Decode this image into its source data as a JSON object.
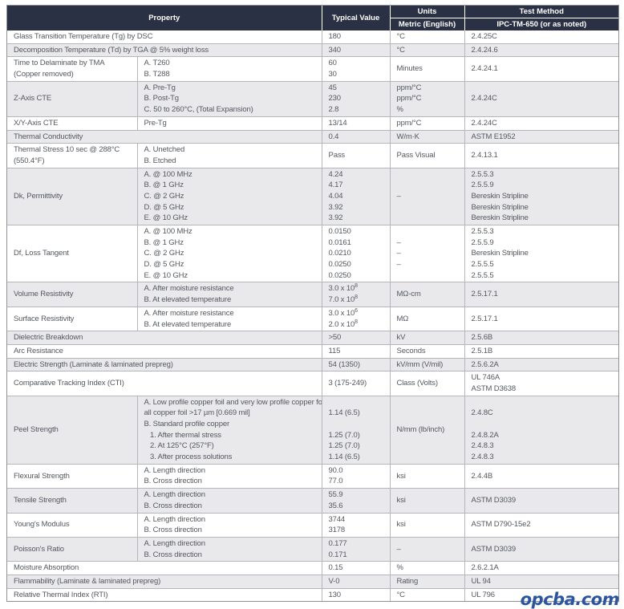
{
  "header": {
    "property": "Property",
    "typical_value": "Typical Value",
    "units": "Units",
    "units_sub": "Metric (English)",
    "test_method": "Test Method",
    "test_method_sub": "IPC-TM-650 (or as noted)"
  },
  "colors": {
    "header_bg": "#2b3144",
    "header_text": "#ffffff",
    "alt_row_bg": "#e9e9ec",
    "border": "#b4b6bb",
    "text": "#54585f",
    "watermark_blue": "#2a55a4"
  },
  "watermark": {
    "text": "opcba.com"
  },
  "rows": [
    {
      "span": true,
      "property": [
        "Glass Transition Temperature (Tg) by DSC"
      ],
      "values": [
        "180"
      ],
      "units": [
        "°C"
      ],
      "test": [
        "2.4.25C"
      ]
    },
    {
      "span": true,
      "property": [
        "Decomposition Temperature (Td) by TGA @ 5% weight loss"
      ],
      "values": [
        "340"
      ],
      "units": [
        "°C"
      ],
      "test": [
        "2.4.24.6"
      ]
    },
    {
      "span": false,
      "property": [
        "Time to Delaminate by TMA",
        "(Copper removed)"
      ],
      "sub": [
        "A. T260",
        "B. T288"
      ],
      "values": [
        "60",
        "30"
      ],
      "units": [
        "Minutes"
      ],
      "test": [
        "2.4.24.1"
      ]
    },
    {
      "span": false,
      "property": [
        "Z-Axis CTE"
      ],
      "sub": [
        "A. Pre-Tg",
        "B. Post-Tg",
        "C. 50 to 260°C, (Total Expansion)"
      ],
      "values": [
        "45",
        "230",
        "2.8"
      ],
      "units": [
        "ppm/°C",
        "ppm/°C",
        "%"
      ],
      "test": [
        "2.4.24C"
      ]
    },
    {
      "span": false,
      "property": [
        "X/Y-Axis CTE"
      ],
      "sub": [
        "Pre-Tg"
      ],
      "values": [
        "13/14"
      ],
      "units": [
        "ppm/°C"
      ],
      "test": [
        "2.4.24C"
      ]
    },
    {
      "span": true,
      "property": [
        "Thermal Conductivity"
      ],
      "values": [
        "0.4"
      ],
      "units": [
        "W/m·K"
      ],
      "test": [
        "ASTM E1952"
      ]
    },
    {
      "span": false,
      "property": [
        "Thermal Stress 10 sec @ 288°C",
        "(550.4°F)"
      ],
      "sub": [
        "A. Unetched",
        "B. Etched"
      ],
      "values": [
        "Pass"
      ],
      "units": [
        "Pass Visual"
      ],
      "test": [
        "2.4.13.1"
      ]
    },
    {
      "span": false,
      "property": [
        "Dk, Permittivity"
      ],
      "sub": [
        "A. @ 100 MHz",
        "B. @ 1 GHz",
        "C. @ 2 GHz",
        "D. @ 5 GHz",
        "E. @ 10 GHz"
      ],
      "values": [
        "4.24",
        "4.17",
        "4.04",
        "3.92",
        "3.92"
      ],
      "units": [
        "",
        "",
        "–",
        "",
        ""
      ],
      "test": [
        "2.5.5.3",
        "2.5.5.9",
        "Bereskin Stripline",
        "Bereskin Stripline",
        "Bereskin Stripline"
      ]
    },
    {
      "span": false,
      "property": [
        "Df, Loss Tangent"
      ],
      "sub": [
        "A. @ 100 MHz",
        "B. @ 1 GHz",
        "C. @ 2 GHz",
        "D. @ 5 GHz",
        "E. @ 10 GHz"
      ],
      "values": [
        "0.0150",
        "0.0161",
        "0.0210",
        "0.0250",
        "0.0250"
      ],
      "units": [
        "",
        "–",
        "–",
        "–",
        ""
      ],
      "test": [
        "2.5.5.3",
        "2.5.5.9",
        "Bereskin Stripline",
        "2.5.5.5",
        "2.5.5.5"
      ]
    },
    {
      "span": false,
      "property": [
        "Volume Resistivity"
      ],
      "sub": [
        "A. After moisture resistance",
        "B. At elevated temperature"
      ],
      "values": [
        "3.0 x 10^8",
        "7.0 x 10^8"
      ],
      "units": [
        "MΩ-cm"
      ],
      "test": [
        "2.5.17.1"
      ]
    },
    {
      "span": false,
      "property": [
        "Surface Resistivity"
      ],
      "sub": [
        "A. After moisture resistance",
        "B. At elevated temperature"
      ],
      "values": [
        "3.0 x 10^6",
        "2.0 x 10^8"
      ],
      "units": [
        "MΩ"
      ],
      "test": [
        "2.5.17.1"
      ]
    },
    {
      "span": true,
      "property": [
        "Dielectric Breakdown"
      ],
      "values": [
        ">50"
      ],
      "units": [
        "kV"
      ],
      "test": [
        "2.5.6B"
      ]
    },
    {
      "span": true,
      "property": [
        "Arc Resistance"
      ],
      "values": [
        "115"
      ],
      "units": [
        "Seconds"
      ],
      "test": [
        "2.5.1B"
      ]
    },
    {
      "span": true,
      "property": [
        "Electric Strength (Laminate & laminated prepreg)"
      ],
      "values": [
        "54 (1350)"
      ],
      "units": [
        "kV/mm (V/mil)"
      ],
      "test": [
        "2.5.6.2A"
      ]
    },
    {
      "span": true,
      "property": [
        "Comparative Tracking Index (CTI)"
      ],
      "values": [
        "3 (175-249)"
      ],
      "units": [
        "Class (Volts)"
      ],
      "test": [
        "UL 746A",
        "ASTM D3638"
      ]
    },
    {
      "span": false,
      "property": [
        "Peel Strength"
      ],
      "sub": [
        "A. Low profile copper foil and very low profile copper foil",
        "all copper foil >17 µm [0.669 mil]",
        "B. Standard profile copper",
        "   1. After thermal stress",
        "   2. At 125°C (257°F)",
        "   3. After process solutions"
      ],
      "values": [
        "",
        "1.14 (6.5)",
        "",
        "1.25 (7.0)",
        "1.25 (7.0)",
        "1.14 (6.5)"
      ],
      "units": [
        "N/mm (lb/inch)"
      ],
      "test": [
        "",
        "2.4.8C",
        "",
        "2.4.8.2A",
        "2.4.8.3",
        "2.4.8.3"
      ]
    },
    {
      "span": false,
      "property": [
        "Flexural Strength"
      ],
      "sub": [
        "A. Length direction",
        "B. Cross direction"
      ],
      "values": [
        "90.0",
        "77.0"
      ],
      "units": [
        "ksi"
      ],
      "test": [
        "2.4.4B"
      ]
    },
    {
      "span": false,
      "property": [
        "Tensile Strength"
      ],
      "sub": [
        "A. Length direction",
        "B. Cross direction"
      ],
      "values": [
        "55.9",
        "35.6"
      ],
      "units": [
        "ksi"
      ],
      "test": [
        "ASTM D3039"
      ]
    },
    {
      "span": false,
      "property": [
        "Young's Modulus"
      ],
      "sub": [
        "A. Length direction",
        "B. Cross direction"
      ],
      "values": [
        "3744",
        "3178"
      ],
      "units": [
        "ksi"
      ],
      "test": [
        "ASTM D790-15e2"
      ]
    },
    {
      "span": false,
      "property": [
        "Poisson's Ratio"
      ],
      "sub": [
        "A. Length direction",
        "B. Cross direction"
      ],
      "values": [
        "0.177",
        "0.171"
      ],
      "units": [
        "–"
      ],
      "test": [
        "ASTM D3039"
      ]
    },
    {
      "span": true,
      "property": [
        "Moisture Absorption"
      ],
      "values": [
        "0.15"
      ],
      "units": [
        "%"
      ],
      "test": [
        "2.6.2.1A"
      ]
    },
    {
      "span": true,
      "property": [
        "Flammability (Laminate & laminated prepreg)"
      ],
      "values": [
        "V-0"
      ],
      "units": [
        "Rating"
      ],
      "test": [
        "UL 94"
      ]
    },
    {
      "span": true,
      "property": [
        "Relative Thermal Index (RTI)"
      ],
      "values": [
        "130"
      ],
      "units": [
        "°C"
      ],
      "test": [
        "UL 796"
      ]
    }
  ]
}
